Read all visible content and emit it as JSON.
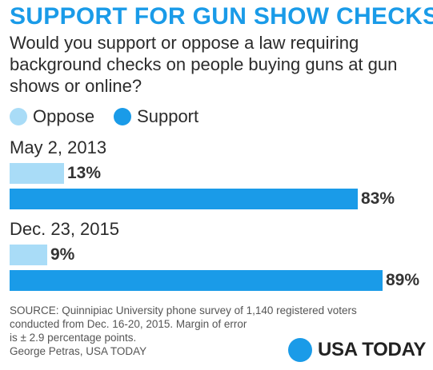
{
  "header": {
    "title": "SUPPORT FOR GUN SHOW CHECKS",
    "subtitle": "Would you support or oppose a law requiring background checks on people buying guns at gun shows or online?"
  },
  "legend": [
    {
      "label": "Oppose",
      "color": "#a9dcf7"
    },
    {
      "label": "Support",
      "color": "#1a9be8"
    }
  ],
  "chart_data": {
    "type": "bar",
    "orientation": "horizontal",
    "categories": [
      "May 2, 2013",
      "Dec. 23, 2015"
    ],
    "series": [
      {
        "name": "Oppose",
        "values": [
          13,
          9
        ],
        "labels": [
          "13%",
          "9%"
        ],
        "color": "#a9dcf7"
      },
      {
        "name": "Support",
        "values": [
          83,
          89
        ],
        "labels": [
          "83%",
          "89%"
        ],
        "color": "#1a9be8"
      }
    ],
    "unit": "%",
    "xlim": [
      0,
      89
    ],
    "legend_position": "top-left"
  },
  "footer": {
    "source_lines": [
      "SOURCE:  Quinnipiac University phone survey of 1,140 registered voters",
      "conducted from Dec. 16-20, 2015. Margin of error",
      "is ± 2.9 percentage points.",
      "George Petras, USA TODAY"
    ],
    "brand": "USA TODAY"
  }
}
